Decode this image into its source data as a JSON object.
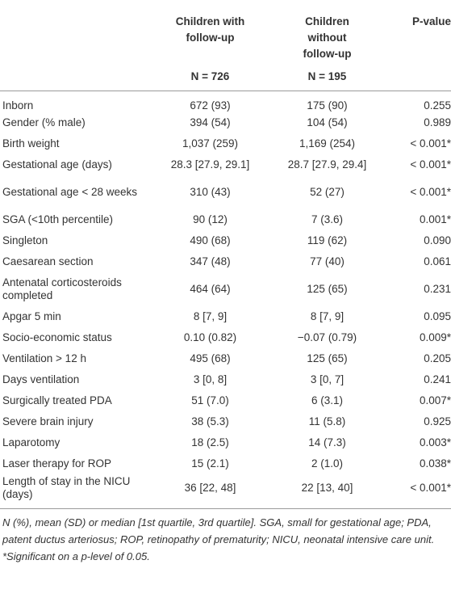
{
  "table": {
    "header": {
      "columns": [
        [],
        [
          "Children with",
          "follow-up"
        ],
        [
          "Children",
          "without",
          "follow-up"
        ],
        [
          "P-value"
        ]
      ],
      "n_row": [
        "",
        "N = 726",
        "N = 195",
        ""
      ]
    },
    "rows": [
      [
        "Inborn",
        "672 (93)",
        "175 (90)",
        "0.255"
      ],
      [
        "Gender (% male)",
        "394 (54)",
        "104 (54)",
        "0.989"
      ],
      [
        "Birth weight",
        "1,037 (259)",
        "1,169 (254)",
        "< 0.001*"
      ],
      [
        "Gestational age (days)",
        "28.3 [27.9, 29.1]",
        "28.7 [27.9, 29.4]",
        "< 0.001*"
      ],
      [
        "Gestational age < 28 weeks",
        "310 (43)",
        "52 (27)",
        "< 0.001*"
      ],
      [
        "SGA (<10th percentile)",
        "90 (12)",
        "7 (3.6)",
        "0.001*"
      ],
      [
        "Singleton",
        "490 (68)",
        "119 (62)",
        "0.090"
      ],
      [
        "Caesarean section",
        "347 (48)",
        "77 (40)",
        "0.061"
      ],
      [
        "Antenatal corticosteroids completed",
        "464 (64)",
        "125 (65)",
        "0.231"
      ],
      [
        "Apgar 5 min",
        "8 [7, 9]",
        "8 [7, 9]",
        "0.095"
      ],
      [
        "Socio-economic status",
        "0.10 (0.82)",
        "−0.07 (0.79)",
        "0.009*"
      ],
      [
        "Ventilation > 12 h",
        "495 (68)",
        "125 (65)",
        "0.205"
      ],
      [
        "Days ventilation",
        "3 [0, 8]",
        "3 [0, 7]",
        "0.241"
      ],
      [
        "Surgically treated PDA",
        "51 (7.0)",
        "6 (3.1)",
        "0.007*"
      ],
      [
        "Severe brain injury",
        "38 (5.3)",
        "11 (5.8)",
        "0.925"
      ],
      [
        "Laparotomy",
        "18 (2.5)",
        "14 (7.3)",
        "0.003*"
      ],
      [
        "Laser therapy for ROP",
        "15 (2.1)",
        "2 (1.0)",
        "0.038*"
      ],
      [
        "Length of stay in the NICU (days)",
        "36 [22, 48]",
        "22 [13, 40]",
        "< 0.001*"
      ]
    ],
    "footnote": "N (%), mean (SD) or median [1st quartile, 3rd quartile]. SGA, small for gestational age; PDA, patent ductus arteriosus; ROP, retinopathy of prematurity; NICU, neonatal intensive care unit. *Significant on a p-level of 0.05."
  }
}
